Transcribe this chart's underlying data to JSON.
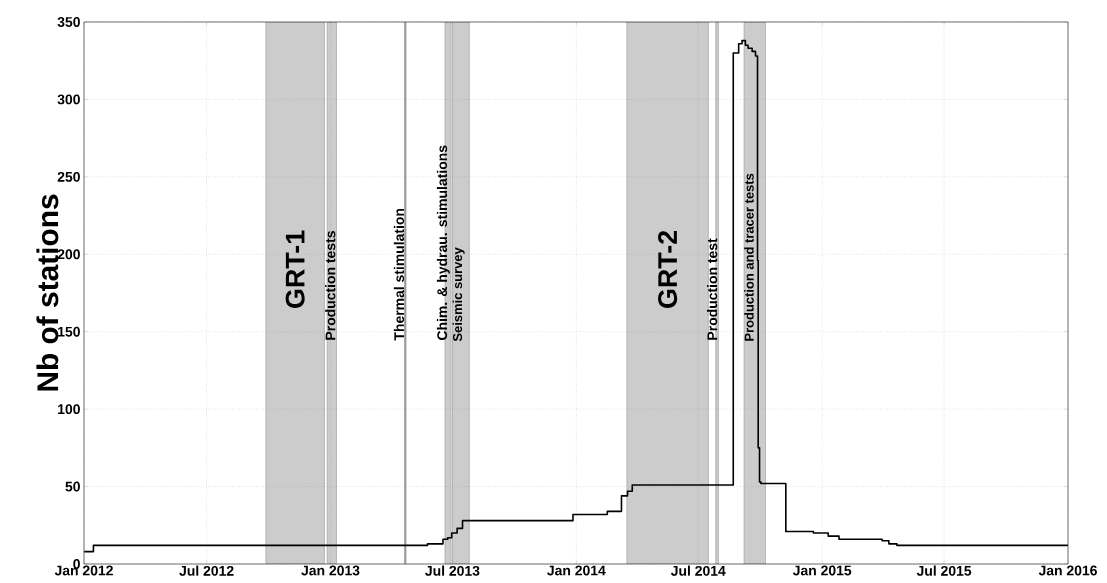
{
  "chart_data": {
    "type": "step",
    "ylabel": "Nb of stations",
    "x": [
      "2012-01-01",
      "2012-01-15",
      "2013-05-25",
      "2013-06-17",
      "2013-06-24",
      "2013-06-30",
      "2013-07-08",
      "2013-07-16",
      "2013-12-27",
      "2014-02-16",
      "2014-03-09",
      "2014-03-18",
      "2014-03-25",
      "2014-08-20",
      "2014-08-22",
      "2014-08-30",
      "2014-09-04",
      "2014-09-09",
      "2014-09-13",
      "2014-09-19",
      "2014-09-24",
      "2014-09-27",
      "2014-09-28",
      "2014-09-30",
      "2014-10-02",
      "2014-11-08",
      "2014-12-19",
      "2015-01-10",
      "2015-01-26",
      "2015-03-31",
      "2015-04-10",
      "2015-04-22",
      "2016-01-01"
    ],
    "values": [
      8,
      12,
      13,
      16,
      17,
      20,
      23,
      28,
      32,
      34,
      44,
      47,
      51,
      51,
      330,
      336,
      338,
      335,
      333,
      331,
      328,
      196,
      75,
      53,
      52,
      21,
      20,
      18,
      16,
      15,
      13,
      12,
      12
    ],
    "color": "#000000",
    "xlim": [
      "2012-01-01",
      "2016-01-01"
    ],
    "xticks": [
      {
        "value": "2012-01-01",
        "label": "Jan 2012"
      },
      {
        "value": "2012-07-01",
        "label": "Jul 2012"
      },
      {
        "value": "2013-01-01",
        "label": "Jan 2013"
      },
      {
        "value": "2013-07-01",
        "label": "Jul 2013"
      },
      {
        "value": "2014-01-01",
        "label": "Jan 2014"
      },
      {
        "value": "2014-07-01",
        "label": "Jul 2014"
      },
      {
        "value": "2015-01-01",
        "label": "Jan 2015"
      },
      {
        "value": "2015-07-01",
        "label": "Jul 2015"
      },
      {
        "value": "2016-01-01",
        "label": "Jan 2016"
      }
    ],
    "ylim": [
      0,
      350
    ],
    "yticks": [
      0,
      50,
      100,
      150,
      200,
      250,
      300,
      350
    ],
    "grid": true,
    "marker": "none",
    "line_style": "solid",
    "bands": [
      {
        "axis": "x",
        "from": "2012-09-27",
        "to": "2012-12-23",
        "label": "GRT-1",
        "color": "#cccccc"
      },
      {
        "axis": "x",
        "from": "2012-12-27",
        "to": "2013-01-10",
        "label": "Production  tests",
        "color": "#cccccc"
      },
      {
        "axis": "x",
        "from": "2013-06-20",
        "to": "2013-06-29",
        "label": "Chim. & hydrau. stimulations",
        "color": "#cccccc"
      },
      {
        "axis": "x",
        "from": "2013-07-01",
        "to": "2013-07-26",
        "label": "Seismic survey",
        "color": "#cccccc"
      },
      {
        "axis": "x",
        "from": "2014-03-17",
        "to": "2014-07-16",
        "label": "GRT-2",
        "color": "#cccccc"
      },
      {
        "axis": "x",
        "from": "2014-07-27",
        "to": "2014-07-31",
        "label": "Production  test",
        "color": "#cccccc"
      },
      {
        "axis": "x",
        "from": "2014-09-07",
        "to": "2014-10-09",
        "label": "Production  and tracer tests",
        "color": "#cccccc"
      }
    ],
    "ref_lines": [
      {
        "axis": "x",
        "value": "2013-04-22",
        "label": "Thermal stimulation",
        "color": "#999999"
      }
    ]
  }
}
